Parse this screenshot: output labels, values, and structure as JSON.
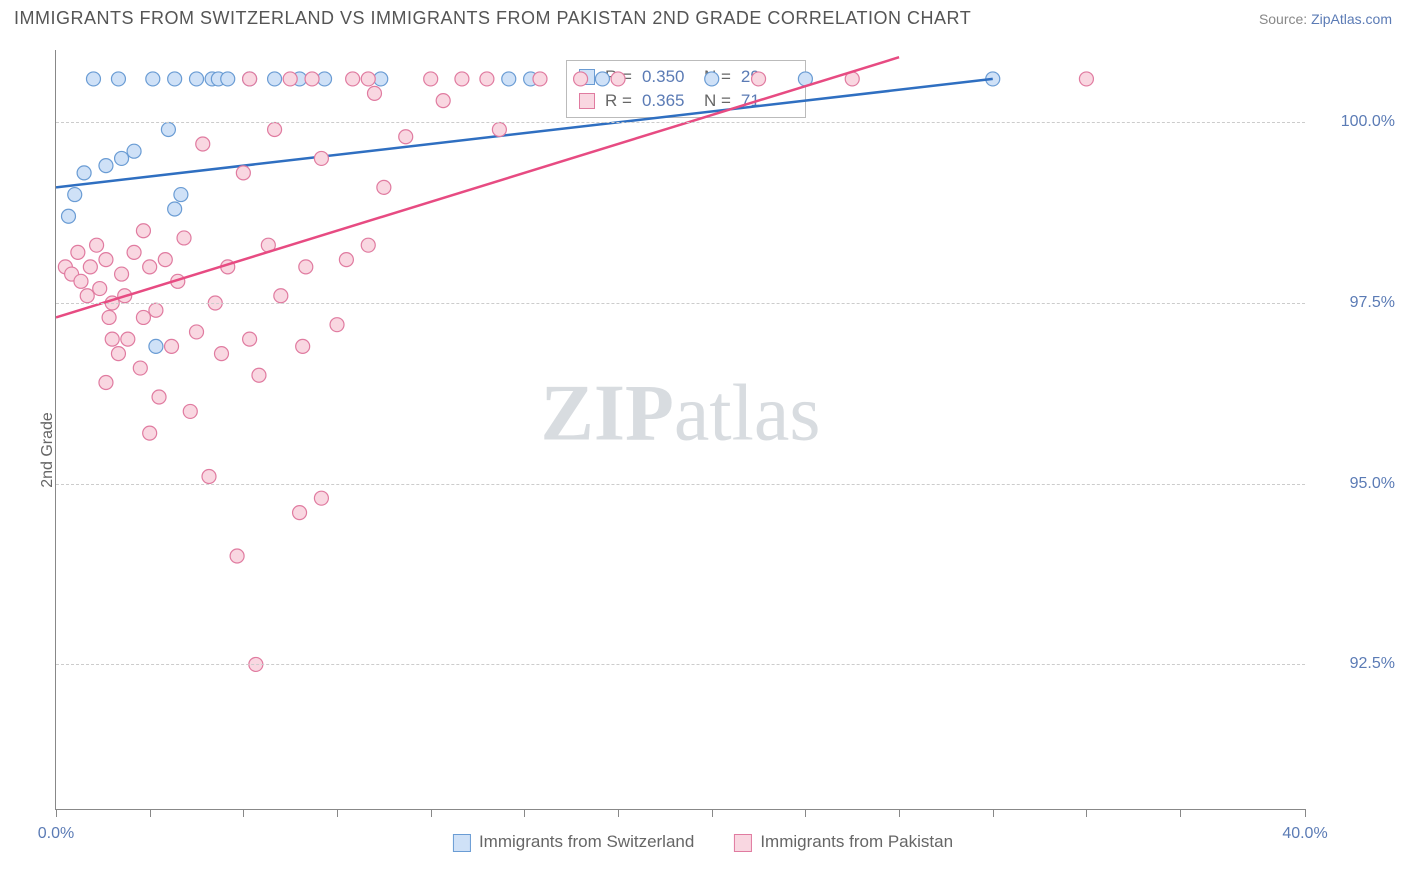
{
  "title": "IMMIGRANTS FROM SWITZERLAND VS IMMIGRANTS FROM PAKISTAN 2ND GRADE CORRELATION CHART",
  "source_prefix": "Source: ",
  "source_link": "ZipAtlas.com",
  "y_axis_label": "2nd Grade",
  "watermark_zip": "ZIP",
  "watermark_atlas": "atlas",
  "chart": {
    "type": "scatter",
    "xlim": [
      0.0,
      40.0
    ],
    "ylim": [
      90.5,
      101.0
    ],
    "x_tick_positions": [
      0.0,
      3.0,
      6.0,
      9.0,
      12.0,
      15.0,
      18.0,
      21.0,
      24.0,
      27.0,
      30.0,
      33.0,
      36.0,
      40.0
    ],
    "x_tick_labels": {
      "0.0": "0.0%",
      "40.0": "40.0%"
    },
    "y_ticks": [
      92.5,
      95.0,
      97.5,
      100.0
    ],
    "y_tick_labels": [
      "92.5%",
      "95.0%",
      "97.5%",
      "100.0%"
    ],
    "background_color": "#ffffff",
    "grid_color": "#cccccc",
    "axis_color": "#888888",
    "marker_radius": 7,
    "marker_stroke_width": 1.2,
    "series": [
      {
        "name": "Immigrants from Switzerland",
        "color_fill": "#cfe1f7",
        "color_stroke": "#6a9cd4",
        "line_color": "#2f6fc1",
        "R": "0.350",
        "N": "29",
        "trend": {
          "x1": 0.0,
          "y1": 99.1,
          "x2": 30.0,
          "y2": 100.6
        },
        "points": [
          [
            0.4,
            98.7
          ],
          [
            0.9,
            99.3
          ],
          [
            1.2,
            100.6
          ],
          [
            1.6,
            99.4
          ],
          [
            2.0,
            100.6
          ],
          [
            2.1,
            99.5
          ],
          [
            2.5,
            99.6
          ],
          [
            3.1,
            100.6
          ],
          [
            3.2,
            96.9
          ],
          [
            3.6,
            99.9
          ],
          [
            3.8,
            100.6
          ],
          [
            4.0,
            99.0
          ],
          [
            4.5,
            100.6
          ],
          [
            5.0,
            100.6
          ],
          [
            5.2,
            100.6
          ],
          [
            5.5,
            100.6
          ],
          [
            6.2,
            100.6
          ],
          [
            7.0,
            100.6
          ],
          [
            7.8,
            100.6
          ],
          [
            8.6,
            100.6
          ],
          [
            10.4,
            100.6
          ],
          [
            14.5,
            100.6
          ],
          [
            15.2,
            100.6
          ],
          [
            17.5,
            100.6
          ],
          [
            21.0,
            100.6
          ],
          [
            24.0,
            100.6
          ],
          [
            30.0,
            100.6
          ],
          [
            3.8,
            98.8
          ],
          [
            0.6,
            99.0
          ]
        ]
      },
      {
        "name": "Immigrants from Pakistan",
        "color_fill": "#f9d7e1",
        "color_stroke": "#e07ba0",
        "line_color": "#e74b82",
        "R": "0.365",
        "N": "71",
        "trend": {
          "x1": 0.0,
          "y1": 97.3,
          "x2": 27.0,
          "y2": 100.9
        },
        "points": [
          [
            0.3,
            98.0
          ],
          [
            0.5,
            97.9
          ],
          [
            0.7,
            98.2
          ],
          [
            0.8,
            97.8
          ],
          [
            1.0,
            97.6
          ],
          [
            1.1,
            98.0
          ],
          [
            1.3,
            98.3
          ],
          [
            1.4,
            97.7
          ],
          [
            1.6,
            98.1
          ],
          [
            1.6,
            96.4
          ],
          [
            1.7,
            97.3
          ],
          [
            1.8,
            97.0
          ],
          [
            1.8,
            97.5
          ],
          [
            2.0,
            96.8
          ],
          [
            2.1,
            97.9
          ],
          [
            2.2,
            97.6
          ],
          [
            2.3,
            97.0
          ],
          [
            2.5,
            98.2
          ],
          [
            2.7,
            96.6
          ],
          [
            2.8,
            97.3
          ],
          [
            2.8,
            98.5
          ],
          [
            3.0,
            98.0
          ],
          [
            3.0,
            95.7
          ],
          [
            3.2,
            97.4
          ],
          [
            3.3,
            96.2
          ],
          [
            3.5,
            98.1
          ],
          [
            3.7,
            96.9
          ],
          [
            3.9,
            97.8
          ],
          [
            4.1,
            98.4
          ],
          [
            4.3,
            96.0
          ],
          [
            4.5,
            97.1
          ],
          [
            4.7,
            99.7
          ],
          [
            4.9,
            95.1
          ],
          [
            5.1,
            97.5
          ],
          [
            5.3,
            96.8
          ],
          [
            5.5,
            98.0
          ],
          [
            5.8,
            94.0
          ],
          [
            6.0,
            99.3
          ],
          [
            6.2,
            97.0
          ],
          [
            6.2,
            100.6
          ],
          [
            6.5,
            96.5
          ],
          [
            6.4,
            92.5
          ],
          [
            6.8,
            98.3
          ],
          [
            7.0,
            99.9
          ],
          [
            7.9,
            96.9
          ],
          [
            7.2,
            97.6
          ],
          [
            7.5,
            100.6
          ],
          [
            7.8,
            94.6
          ],
          [
            8.0,
            98.0
          ],
          [
            8.2,
            100.6
          ],
          [
            8.5,
            99.5
          ],
          [
            8.5,
            94.8
          ],
          [
            9.0,
            97.2
          ],
          [
            9.3,
            98.1
          ],
          [
            9.5,
            100.6
          ],
          [
            10.0,
            98.3
          ],
          [
            10.0,
            100.6
          ],
          [
            10.2,
            100.4
          ],
          [
            10.5,
            99.1
          ],
          [
            11.2,
            99.8
          ],
          [
            12.0,
            100.6
          ],
          [
            12.4,
            100.3
          ],
          [
            13.0,
            100.6
          ],
          [
            13.8,
            100.6
          ],
          [
            14.2,
            99.9
          ],
          [
            15.5,
            100.6
          ],
          [
            16.8,
            100.6
          ],
          [
            18.0,
            100.6
          ],
          [
            22.5,
            100.6
          ],
          [
            25.5,
            100.6
          ],
          [
            33.0,
            100.6
          ]
        ]
      }
    ]
  },
  "legend_bottom": [
    {
      "label": "Immigrants from Switzerland"
    },
    {
      "label": "Immigrants from Pakistan"
    }
  ],
  "legend_top_labels": {
    "R": "R =",
    "N": "N ="
  }
}
